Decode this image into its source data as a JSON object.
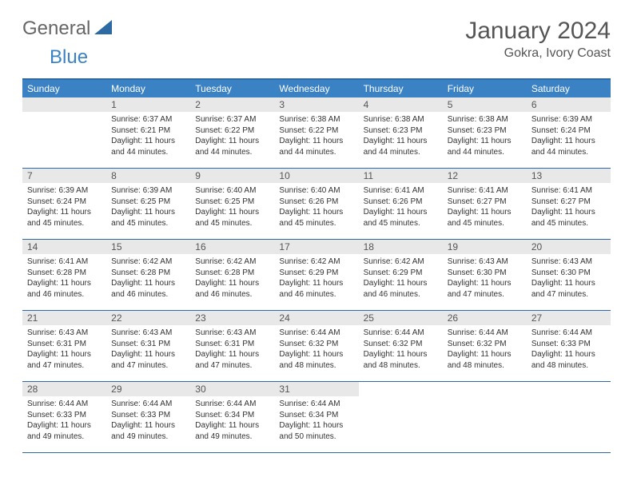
{
  "logo": {
    "part1": "General",
    "part2": "Blue"
  },
  "title": "January 2024",
  "location": "Gokra, Ivory Coast",
  "weekdays": [
    "Sunday",
    "Monday",
    "Tuesday",
    "Wednesday",
    "Thursday",
    "Friday",
    "Saturday"
  ],
  "colors": {
    "header_bar": "#3b82c4",
    "rule": "#2d6aa3",
    "daynum_bg": "#e8e8e8",
    "text": "#333333",
    "logo_gray": "#666666",
    "logo_blue": "#3b82c4"
  },
  "weeks": [
    [
      null,
      {
        "n": "1",
        "sr": "Sunrise: 6:37 AM",
        "ss": "Sunset: 6:21 PM",
        "dl": "Daylight: 11 hours and 44 minutes."
      },
      {
        "n": "2",
        "sr": "Sunrise: 6:37 AM",
        "ss": "Sunset: 6:22 PM",
        "dl": "Daylight: 11 hours and 44 minutes."
      },
      {
        "n": "3",
        "sr": "Sunrise: 6:38 AM",
        "ss": "Sunset: 6:22 PM",
        "dl": "Daylight: 11 hours and 44 minutes."
      },
      {
        "n": "4",
        "sr": "Sunrise: 6:38 AM",
        "ss": "Sunset: 6:23 PM",
        "dl": "Daylight: 11 hours and 44 minutes."
      },
      {
        "n": "5",
        "sr": "Sunrise: 6:38 AM",
        "ss": "Sunset: 6:23 PM",
        "dl": "Daylight: 11 hours and 44 minutes."
      },
      {
        "n": "6",
        "sr": "Sunrise: 6:39 AM",
        "ss": "Sunset: 6:24 PM",
        "dl": "Daylight: 11 hours and 44 minutes."
      }
    ],
    [
      {
        "n": "7",
        "sr": "Sunrise: 6:39 AM",
        "ss": "Sunset: 6:24 PM",
        "dl": "Daylight: 11 hours and 45 minutes."
      },
      {
        "n": "8",
        "sr": "Sunrise: 6:39 AM",
        "ss": "Sunset: 6:25 PM",
        "dl": "Daylight: 11 hours and 45 minutes."
      },
      {
        "n": "9",
        "sr": "Sunrise: 6:40 AM",
        "ss": "Sunset: 6:25 PM",
        "dl": "Daylight: 11 hours and 45 minutes."
      },
      {
        "n": "10",
        "sr": "Sunrise: 6:40 AM",
        "ss": "Sunset: 6:26 PM",
        "dl": "Daylight: 11 hours and 45 minutes."
      },
      {
        "n": "11",
        "sr": "Sunrise: 6:41 AM",
        "ss": "Sunset: 6:26 PM",
        "dl": "Daylight: 11 hours and 45 minutes."
      },
      {
        "n": "12",
        "sr": "Sunrise: 6:41 AM",
        "ss": "Sunset: 6:27 PM",
        "dl": "Daylight: 11 hours and 45 minutes."
      },
      {
        "n": "13",
        "sr": "Sunrise: 6:41 AM",
        "ss": "Sunset: 6:27 PM",
        "dl": "Daylight: 11 hours and 45 minutes."
      }
    ],
    [
      {
        "n": "14",
        "sr": "Sunrise: 6:41 AM",
        "ss": "Sunset: 6:28 PM",
        "dl": "Daylight: 11 hours and 46 minutes."
      },
      {
        "n": "15",
        "sr": "Sunrise: 6:42 AM",
        "ss": "Sunset: 6:28 PM",
        "dl": "Daylight: 11 hours and 46 minutes."
      },
      {
        "n": "16",
        "sr": "Sunrise: 6:42 AM",
        "ss": "Sunset: 6:28 PM",
        "dl": "Daylight: 11 hours and 46 minutes."
      },
      {
        "n": "17",
        "sr": "Sunrise: 6:42 AM",
        "ss": "Sunset: 6:29 PM",
        "dl": "Daylight: 11 hours and 46 minutes."
      },
      {
        "n": "18",
        "sr": "Sunrise: 6:42 AM",
        "ss": "Sunset: 6:29 PM",
        "dl": "Daylight: 11 hours and 46 minutes."
      },
      {
        "n": "19",
        "sr": "Sunrise: 6:43 AM",
        "ss": "Sunset: 6:30 PM",
        "dl": "Daylight: 11 hours and 47 minutes."
      },
      {
        "n": "20",
        "sr": "Sunrise: 6:43 AM",
        "ss": "Sunset: 6:30 PM",
        "dl": "Daylight: 11 hours and 47 minutes."
      }
    ],
    [
      {
        "n": "21",
        "sr": "Sunrise: 6:43 AM",
        "ss": "Sunset: 6:31 PM",
        "dl": "Daylight: 11 hours and 47 minutes."
      },
      {
        "n": "22",
        "sr": "Sunrise: 6:43 AM",
        "ss": "Sunset: 6:31 PM",
        "dl": "Daylight: 11 hours and 47 minutes."
      },
      {
        "n": "23",
        "sr": "Sunrise: 6:43 AM",
        "ss": "Sunset: 6:31 PM",
        "dl": "Daylight: 11 hours and 47 minutes."
      },
      {
        "n": "24",
        "sr": "Sunrise: 6:44 AM",
        "ss": "Sunset: 6:32 PM",
        "dl": "Daylight: 11 hours and 48 minutes."
      },
      {
        "n": "25",
        "sr": "Sunrise: 6:44 AM",
        "ss": "Sunset: 6:32 PM",
        "dl": "Daylight: 11 hours and 48 minutes."
      },
      {
        "n": "26",
        "sr": "Sunrise: 6:44 AM",
        "ss": "Sunset: 6:32 PM",
        "dl": "Daylight: 11 hours and 48 minutes."
      },
      {
        "n": "27",
        "sr": "Sunrise: 6:44 AM",
        "ss": "Sunset: 6:33 PM",
        "dl": "Daylight: 11 hours and 48 minutes."
      }
    ],
    [
      {
        "n": "28",
        "sr": "Sunrise: 6:44 AM",
        "ss": "Sunset: 6:33 PM",
        "dl": "Daylight: 11 hours and 49 minutes."
      },
      {
        "n": "29",
        "sr": "Sunrise: 6:44 AM",
        "ss": "Sunset: 6:33 PM",
        "dl": "Daylight: 11 hours and 49 minutes."
      },
      {
        "n": "30",
        "sr": "Sunrise: 6:44 AM",
        "ss": "Sunset: 6:34 PM",
        "dl": "Daylight: 11 hours and 49 minutes."
      },
      {
        "n": "31",
        "sr": "Sunrise: 6:44 AM",
        "ss": "Sunset: 6:34 PM",
        "dl": "Daylight: 11 hours and 50 minutes."
      },
      null,
      null,
      null
    ]
  ]
}
